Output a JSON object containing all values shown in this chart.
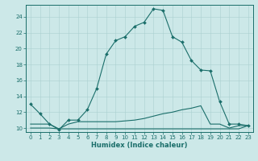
{
  "xlabel": "Humidex (Indice chaleur)",
  "ylabel": "",
  "bg_color": "#cce8e8",
  "line_color": "#1a6e6a",
  "grid_color": "#aad0d0",
  "xlim": [
    -0.5,
    23.5
  ],
  "ylim": [
    9.5,
    25.5
  ],
  "yticks": [
    10,
    12,
    14,
    16,
    18,
    20,
    22,
    24
  ],
  "xticks": [
    0,
    1,
    2,
    3,
    4,
    5,
    6,
    7,
    8,
    9,
    10,
    11,
    12,
    13,
    14,
    15,
    16,
    17,
    18,
    19,
    20,
    21,
    22,
    23
  ],
  "curve1_x": [
    0,
    1,
    2,
    3,
    4,
    5,
    6,
    7,
    8,
    9,
    10,
    11,
    12,
    13,
    14,
    15,
    16,
    17,
    18,
    19,
    20,
    21,
    22,
    23
  ],
  "curve1_y": [
    13.0,
    11.8,
    10.5,
    9.8,
    11.0,
    11.0,
    12.3,
    15.0,
    19.3,
    21.0,
    21.5,
    22.8,
    23.3,
    25.0,
    24.8,
    21.5,
    20.8,
    18.5,
    17.3,
    17.2,
    13.3,
    10.5,
    10.5,
    10.3
  ],
  "curve2_x": [
    0,
    1,
    2,
    3,
    4,
    5,
    6,
    7,
    8,
    9,
    10,
    11,
    12,
    13,
    14,
    15,
    16,
    17,
    18,
    19,
    20,
    21,
    22,
    23
  ],
  "curve2_y": [
    10.5,
    10.5,
    10.5,
    9.9,
    10.5,
    10.8,
    10.8,
    10.8,
    10.8,
    10.8,
    10.9,
    11.0,
    11.2,
    11.5,
    11.8,
    12.0,
    12.3,
    12.5,
    12.8,
    10.5,
    10.5,
    10.0,
    10.3,
    10.3
  ],
  "curve3_x": [
    0,
    1,
    2,
    3,
    4,
    5,
    6,
    7,
    8,
    9,
    10,
    11,
    12,
    13,
    14,
    15,
    16,
    17,
    18,
    19,
    20,
    21,
    22,
    23
  ],
  "curve3_y": [
    10.0,
    10.0,
    10.0,
    9.9,
    9.9,
    9.9,
    9.9,
    9.9,
    9.9,
    9.9,
    9.9,
    9.9,
    9.9,
    9.9,
    9.9,
    9.9,
    9.9,
    9.9,
    9.9,
    9.9,
    9.9,
    9.9,
    9.9,
    10.3
  ],
  "tick_fontsize": 5.0,
  "xlabel_fontsize": 6.0,
  "marker_size": 2.0,
  "linewidth": 0.8
}
